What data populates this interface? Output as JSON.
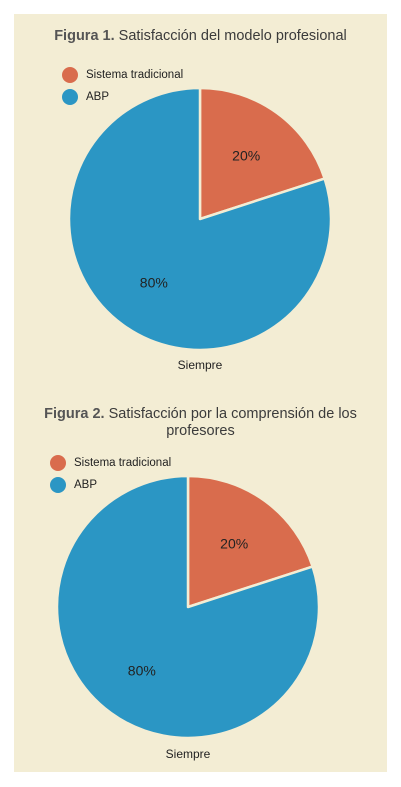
{
  "colors": {
    "panel": "#f3edd4",
    "traditional": "#d96c4d",
    "abp": "#2b96c4",
    "border": "#f3edd4"
  },
  "chart_data": [
    {
      "type": "pie",
      "title_lead": "Figura 1.",
      "title_text": "Satisfacción del modelo profesional",
      "category": "Siempre",
      "legend_placement": "top-left",
      "slices": [
        {
          "name": "Sistema tradicional",
          "value": 20,
          "label": "20%"
        },
        {
          "name": "ABP",
          "value": 80,
          "label": "80%"
        }
      ]
    },
    {
      "type": "pie",
      "title_lead": "Figura 2.",
      "title_text": "Satisfacción por la comprensión de los profesores",
      "category": "Siempre",
      "legend_placement": "top-left",
      "slices": [
        {
          "name": "Sistema tradicional",
          "value": 20,
          "label": "20%"
        },
        {
          "name": "ABP",
          "value": 80,
          "label": "80%"
        }
      ]
    }
  ]
}
